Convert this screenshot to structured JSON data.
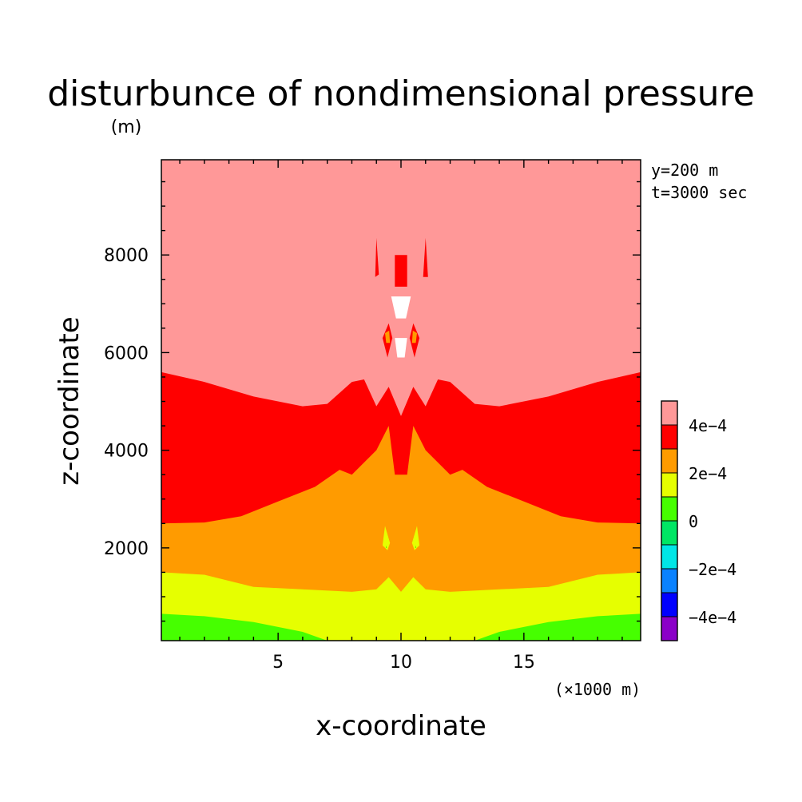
{
  "chart_data": {
    "type": "heatmap",
    "title": "disturbunce of nondimensional pressure",
    "ylabel": "z-coordinate",
    "yunit": "(m)",
    "xlabel": "x-coordinate",
    "xunit": "(×1000 m)",
    "annotations": [
      "y=200 m",
      "t=3000 sec"
    ],
    "xlim": [
      0.25,
      19.75
    ],
    "ylim": [
      100,
      9950
    ],
    "xticks": [
      {
        "value": 5,
        "label": "5"
      },
      {
        "value": 10,
        "label": "10"
      },
      {
        "value": 15,
        "label": "15"
      }
    ],
    "yticks": [
      {
        "value": 2000,
        "label": "2000"
      },
      {
        "value": 4000,
        "label": "4000"
      },
      {
        "value": 6000,
        "label": "6000"
      },
      {
        "value": 8000,
        "label": "8000"
      }
    ],
    "colorbar": {
      "levels": [
        "-5e-4",
        "-4e-4",
        "-3e-4",
        "-2e-4",
        "-1e-4",
        "0",
        "1e-4",
        "2e-4",
        "3e-4",
        "4e-4",
        "5e-4"
      ],
      "colors": [
        "#8b00c8",
        "#0000ff",
        "#0a82ff",
        "#00e6e6",
        "#00e664",
        "#46ff00",
        "#e6ff00",
        "#ff9b00",
        "#ff0000",
        "#ff9898"
      ],
      "labels": [
        {
          "value": "-4e-4",
          "label": "−4e−4"
        },
        {
          "value": "-2e-4",
          "label": "−2e−4"
        },
        {
          "value": "0",
          "label": "0"
        },
        {
          "value": "2e-4",
          "label": "2e−4"
        },
        {
          "value": "4e-4",
          "label": "4e−4"
        }
      ]
    },
    "regions": [
      {
        "name": "above 4e-4",
        "color": "#ff9898"
      },
      {
        "name": "3e-4 to 4e-4",
        "color": "#ff0000"
      },
      {
        "name": "2e-4 to 3e-4",
        "color": "#ff9b00"
      },
      {
        "name": "1e-4 to 2e-4",
        "color": "#e6ff00"
      },
      {
        "name": "0 to 1e-4",
        "color": "#46ff00"
      }
    ],
    "boundaries": {
      "red_bottom": [
        [
          0.25,
          2500
        ],
        [
          2,
          2520
        ],
        [
          3.5,
          2650
        ],
        [
          5,
          2950
        ],
        [
          6.5,
          3250
        ],
        [
          7.5,
          3600
        ],
        [
          8,
          3500
        ],
        [
          9,
          4000
        ],
        [
          9.5,
          4500
        ],
        [
          9.75,
          3500
        ],
        [
          10.25,
          3500
        ],
        [
          10.5,
          4500
        ],
        [
          11,
          4000
        ],
        [
          12,
          3500
        ],
        [
          12.5,
          3600
        ],
        [
          13.5,
          3250
        ],
        [
          15,
          2950
        ],
        [
          16.5,
          2650
        ],
        [
          18,
          2520
        ],
        [
          19.75,
          2500
        ]
      ],
      "red_top": [
        [
          0.25,
          5600
        ],
        [
          2,
          5400
        ],
        [
          4,
          5100
        ],
        [
          6,
          4900
        ],
        [
          7,
          4950
        ],
        [
          8,
          5400
        ],
        [
          8.5,
          5450
        ],
        [
          9,
          4900
        ],
        [
          9.5,
          5300
        ],
        [
          10,
          4700
        ],
        [
          10.5,
          5300
        ],
        [
          11,
          4900
        ],
        [
          11.5,
          5450
        ],
        [
          12,
          5400
        ],
        [
          13,
          4950
        ],
        [
          14,
          4900
        ],
        [
          16,
          5100
        ],
        [
          18,
          5400
        ],
        [
          19.75,
          5600
        ]
      ],
      "yellow_top": [
        [
          0.25,
          1500
        ],
        [
          2,
          1450
        ],
        [
          4,
          1200
        ],
        [
          6,
          1150
        ],
        [
          8,
          1100
        ],
        [
          9,
          1150
        ],
        [
          9.5,
          1400
        ],
        [
          10,
          1100
        ],
        [
          10.5,
          1400
        ],
        [
          11,
          1150
        ],
        [
          12,
          1100
        ],
        [
          14,
          1150
        ],
        [
          16,
          1200
        ],
        [
          18,
          1450
        ],
        [
          19.75,
          1500
        ]
      ],
      "green_top": [
        [
          0.25,
          650
        ],
        [
          2,
          600
        ],
        [
          4,
          480
        ],
        [
          6,
          280
        ],
        [
          7,
          100
        ],
        [
          13,
          100
        ],
        [
          14,
          280
        ],
        [
          16,
          480
        ],
        [
          18,
          600
        ],
        [
          19.75,
          650
        ]
      ]
    },
    "blobs": [
      {
        "color": "#ff0000",
        "points": [
          [
            9.0,
            8350
          ],
          [
            9.1,
            7600
          ],
          [
            8.95,
            7550
          ]
        ]
      },
      {
        "color": "#ff0000",
        "points": [
          [
            11.0,
            8350
          ],
          [
            11.1,
            7550
          ],
          [
            10.9,
            7550
          ]
        ]
      },
      {
        "color": "#ff0000",
        "points": [
          [
            9.75,
            8000
          ],
          [
            10.25,
            8000
          ],
          [
            10.25,
            7350
          ],
          [
            9.75,
            7350
          ]
        ]
      },
      {
        "color": "#ffffff",
        "points": [
          [
            9.6,
            7150
          ],
          [
            10.4,
            7150
          ],
          [
            10.2,
            6700
          ],
          [
            9.8,
            6700
          ]
        ]
      },
      {
        "color": "#ff0000",
        "points": [
          [
            9.25,
            6300
          ],
          [
            9.5,
            6600
          ],
          [
            9.65,
            6300
          ],
          [
            9.45,
            5900
          ]
        ]
      },
      {
        "color": "#ff0000",
        "points": [
          [
            10.75,
            6300
          ],
          [
            10.5,
            6600
          ],
          [
            10.35,
            6300
          ],
          [
            10.55,
            5900
          ]
        ]
      },
      {
        "color": "#ff9b00",
        "points": [
          [
            9.35,
            6400
          ],
          [
            9.52,
            6450
          ],
          [
            9.55,
            6200
          ],
          [
            9.4,
            6200
          ]
        ]
      },
      {
        "color": "#ff9b00",
        "points": [
          [
            10.65,
            6400
          ],
          [
            10.48,
            6450
          ],
          [
            10.45,
            6200
          ],
          [
            10.6,
            6200
          ]
        ]
      },
      {
        "color": "#ffffff",
        "points": [
          [
            9.75,
            6300
          ],
          [
            10.25,
            6300
          ],
          [
            10.15,
            5900
          ],
          [
            9.85,
            5900
          ]
        ]
      },
      {
        "color": "#e6ff00",
        "points": [
          [
            9.35,
            2450
          ],
          [
            9.55,
            2100
          ],
          [
            9.45,
            1950
          ],
          [
            9.25,
            2050
          ]
        ]
      },
      {
        "color": "#e6ff00",
        "points": [
          [
            10.65,
            2450
          ],
          [
            10.45,
            2100
          ],
          [
            10.55,
            1950
          ],
          [
            10.75,
            2050
          ]
        ]
      },
      {
        "color": "#46ff00",
        "points": [
          [
            9.4,
            2050
          ],
          [
            9.42,
            2000
          ],
          [
            9.38,
            2000
          ]
        ]
      },
      {
        "color": "#46ff00",
        "points": [
          [
            10.6,
            2050
          ],
          [
            10.62,
            2000
          ],
          [
            10.58,
            2000
          ]
        ]
      }
    ]
  }
}
